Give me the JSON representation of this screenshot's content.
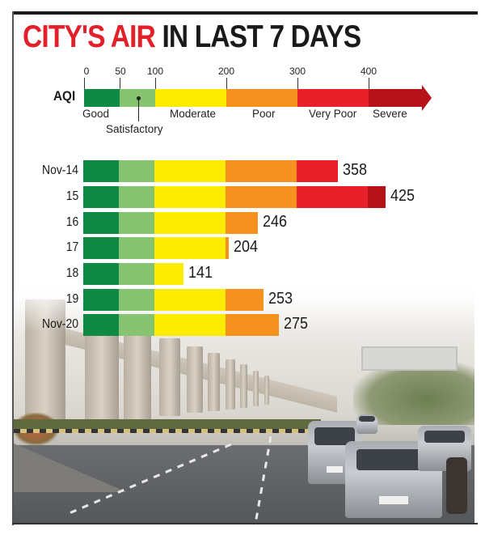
{
  "title": {
    "red_part": "CITY'S AIR",
    "black_part": "IN LAST 7 DAYS"
  },
  "colors": {
    "good": "#0e8a44",
    "satisfactory": "#86c472",
    "moderate": "#fcec00",
    "poor": "#f5911f",
    "very_poor": "#e8202a",
    "severe": "#b51219",
    "title_red": "#e3202a"
  },
  "legend": {
    "axis_label": "AQI",
    "ticks": [
      "0",
      "50",
      "100",
      "200",
      "300",
      "400"
    ],
    "categories": [
      {
        "label": "Good",
        "from": 0,
        "to": 50
      },
      {
        "label": "Satisfactory",
        "from": 50,
        "to": 100
      },
      {
        "label": "Moderate",
        "from": 100,
        "to": 200
      },
      {
        "label": "Poor",
        "from": 200,
        "to": 300
      },
      {
        "label": "Very Poor",
        "from": 300,
        "to": 400
      },
      {
        "label": "Severe",
        "from": 400,
        "to": 500
      }
    ]
  },
  "rows": [
    {
      "label": "Nov-14",
      "value": "358"
    },
    {
      "label": "15",
      "value": "425"
    },
    {
      "label": "16",
      "value": "246"
    },
    {
      "label": "17",
      "value": "204"
    },
    {
      "label": "18",
      "value": "141"
    },
    {
      "label": "19",
      "value": "253"
    },
    {
      "label": "Nov-20",
      "value": "275"
    }
  ],
  "chart_data": {
    "type": "bar",
    "orientation": "horizontal",
    "title": "CITY'S AIR IN LAST 7 DAYS",
    "xlabel": "AQI",
    "ylabel": "",
    "categories": [
      "Nov-14",
      "15",
      "16",
      "17",
      "18",
      "19",
      "Nov-20"
    ],
    "values": [
      358,
      425,
      246,
      204,
      141,
      253,
      275
    ],
    "xlim": [
      0,
      500
    ],
    "x_ticks": [
      0,
      50,
      100,
      200,
      300,
      400
    ],
    "color_bands": [
      {
        "label": "Good",
        "range": [
          0,
          50
        ],
        "color": "#0e8a44"
      },
      {
        "label": "Satisfactory",
        "range": [
          50,
          100
        ],
        "color": "#86c472"
      },
      {
        "label": "Moderate",
        "range": [
          100,
          200
        ],
        "color": "#fcec00"
      },
      {
        "label": "Poor",
        "range": [
          200,
          300
        ],
        "color": "#f5911f"
      },
      {
        "label": "Very Poor",
        "range": [
          300,
          400
        ],
        "color": "#e8202a"
      },
      {
        "label": "Severe",
        "range": [
          400,
          500
        ],
        "color": "#b51219"
      }
    ],
    "data_labels": true,
    "grid": false,
    "legend_position": "top"
  }
}
